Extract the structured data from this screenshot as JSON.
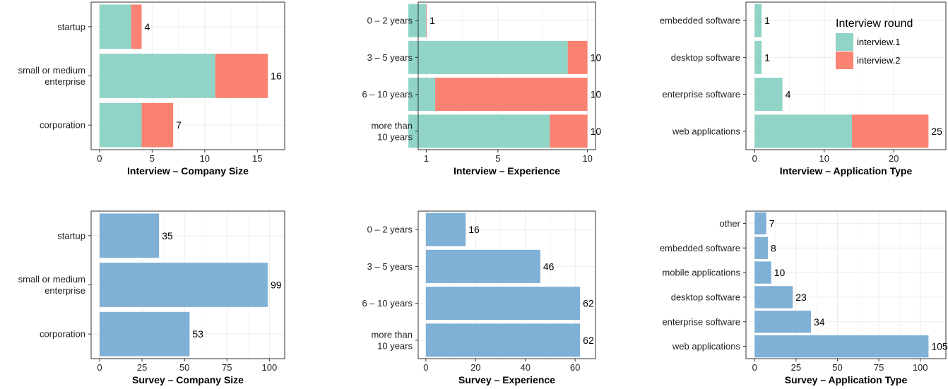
{
  "colors": {
    "interview_1": "#8fd4c6",
    "interview_2": "#fa8272",
    "survey": "#7fb0d6",
    "grid": "#ebebeb",
    "panel_border": "#333333"
  },
  "legend": {
    "title": "Interview round",
    "items": [
      "interview.1",
      "interview.2"
    ]
  },
  "chart_data": [
    {
      "type": "bar",
      "orientation": "horizontal",
      "stacked": true,
      "title": "Interview – Company Size",
      "categories": [
        [
          "startup"
        ],
        [
          "small or medium",
          "enterprise"
        ],
        [
          "corporation"
        ]
      ],
      "series": [
        {
          "name": "interview.1",
          "values": [
            3,
            11,
            4
          ]
        },
        {
          "name": "interview.2",
          "values": [
            1,
            5,
            3
          ]
        }
      ],
      "totals": [
        "4",
        "16",
        "7"
      ],
      "xlim": [
        -0.8,
        17.6
      ],
      "xticks": [
        0,
        5,
        10,
        15
      ],
      "xtick_labels": [
        "0",
        "5",
        "10",
        "15"
      ]
    },
    {
      "type": "bar",
      "orientation": "horizontal",
      "stacked": true,
      "title": "Interview – Experience",
      "categories": [
        [
          "0 – 2 years"
        ],
        [
          "3 – 5 years"
        ],
        [
          "6 – 10 years"
        ],
        [
          "more than",
          "10 years"
        ]
      ],
      "series": [
        {
          "name": "interview.1",
          "values": [
            1,
            8.9,
            1.5,
            7.9
          ]
        },
        {
          "name": "interview.2",
          "values": [
            0.03,
            1.1,
            8.5,
            2.1
          ]
        }
      ],
      "totals": [
        "1",
        "10",
        "10",
        "10"
      ],
      "xlim": [
        0.55,
        10.45
      ],
      "xticks": [
        1,
        5,
        10
      ],
      "xtick_labels": [
        "1",
        "5",
        "10"
      ]
    },
    {
      "type": "bar",
      "orientation": "horizontal",
      "stacked": true,
      "title": "Interview – Application Type",
      "categories": [
        [
          "embedded software"
        ],
        [
          "desktop software"
        ],
        [
          "enterprise software"
        ],
        [
          "web applications"
        ]
      ],
      "series": [
        {
          "name": "interview.1",
          "values": [
            1,
            1,
            4,
            14
          ]
        },
        {
          "name": "interview.2",
          "values": [
            0,
            0,
            0,
            11
          ]
        }
      ],
      "totals": [
        "1",
        "1",
        "4",
        "25"
      ],
      "xlim": [
        -1.25,
        27.5
      ],
      "xticks": [
        0,
        10,
        20
      ],
      "xtick_labels": [
        "0",
        "10",
        "20"
      ]
    },
    {
      "type": "bar",
      "orientation": "horizontal",
      "title": "Survey – Company Size",
      "categories": [
        [
          "startup"
        ],
        [
          "small or medium",
          "enterprise"
        ],
        [
          "corporation"
        ]
      ],
      "values": [
        35,
        99,
        53
      ],
      "xlim": [
        -5,
        109
      ],
      "xticks": [
        0,
        25,
        50,
        75,
        100
      ],
      "xtick_labels": [
        "0",
        "25",
        "50",
        "75",
        "100"
      ]
    },
    {
      "type": "bar",
      "orientation": "horizontal",
      "title": "Survey – Experience",
      "categories": [
        [
          "0 – 2 years"
        ],
        [
          "3 – 5 years"
        ],
        [
          "6 – 10 years"
        ],
        [
          "more than",
          "10 years"
        ]
      ],
      "values": [
        16,
        46,
        62,
        62
      ],
      "xlim": [
        -3.1,
        68.2
      ],
      "xticks": [
        0,
        20,
        40,
        60
      ],
      "xtick_labels": [
        "0",
        "20",
        "40",
        "60"
      ]
    },
    {
      "type": "bar",
      "orientation": "horizontal",
      "title": "Survey – Application Type",
      "categories": [
        [
          "other"
        ],
        [
          "embedded software"
        ],
        [
          "mobile applications"
        ],
        [
          "desktop software"
        ],
        [
          "enterprise software"
        ],
        [
          "web applications"
        ]
      ],
      "values": [
        7,
        8,
        10,
        23,
        34,
        105
      ],
      "xlim": [
        -5.25,
        115.5
      ],
      "xticks": [
        0,
        25,
        50,
        75,
        100
      ],
      "xtick_labels": [
        "0",
        "25",
        "50",
        "75",
        "100"
      ]
    }
  ]
}
